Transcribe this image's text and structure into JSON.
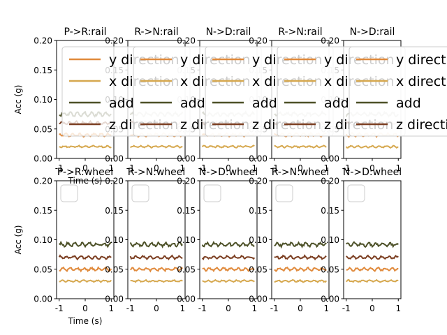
{
  "chart_data": [
    {
      "type": "line",
      "title": "P->R:rail",
      "xlabel": "Time (s)",
      "ylabel": "Acc (g)",
      "xlim": [
        -1.1,
        1.1
      ],
      "ylim": [
        0,
        0.2
      ],
      "xticks": [
        "-1",
        "0",
        "1"
      ],
      "yticks": [
        "0.00",
        "0.05",
        "0.10",
        "0.15",
        "0.20"
      ],
      "legend": "top-right",
      "series": [
        {
          "name": "y direction",
          "level": 0.04
        },
        {
          "name": "x direction",
          "level": 0.02
        },
        {
          "name": "add",
          "level": 0.075
        },
        {
          "name": "z direction",
          "level": 0.06
        }
      ]
    },
    {
      "type": "line",
      "title": "R->N:rail",
      "xlabel": "",
      "ylabel": "",
      "xlim": [
        -1.1,
        1.1
      ],
      "ylim": [
        0,
        0.2
      ],
      "xticks": [
        "-1",
        "0",
        "1"
      ],
      "yticks": [
        "0.00",
        "0.05",
        "0.10",
        "0.15",
        "0.20"
      ],
      "legend": "top-right",
      "series": [
        {
          "name": "y direction",
          "level": 0.04
        },
        {
          "name": "x direction",
          "level": 0.02
        },
        {
          "name": "add",
          "level": 0.075
        },
        {
          "name": "z direction",
          "level": 0.06
        }
      ]
    },
    {
      "type": "line",
      "title": "N->D:rail",
      "xlabel": "",
      "ylabel": "",
      "xlim": [
        -1.1,
        1.1
      ],
      "ylim": [
        0,
        0.2
      ],
      "xticks": [
        "-1",
        "0",
        "1"
      ],
      "yticks": [
        "0.00",
        "0.05",
        "0.10",
        "0.15",
        "0.20"
      ],
      "legend": "top-right",
      "series": [
        {
          "name": "y direction",
          "level": 0.04
        },
        {
          "name": "x direction",
          "level": 0.02
        },
        {
          "name": "add",
          "level": 0.075
        },
        {
          "name": "z direction",
          "level": 0.06
        }
      ]
    },
    {
      "type": "line",
      "title": "R->N:rail",
      "xlabel": "",
      "ylabel": "",
      "xlim": [
        -1.1,
        1.1
      ],
      "ylim": [
        0,
        0.2
      ],
      "xticks": [
        "-1",
        "0",
        "1"
      ],
      "yticks": [
        "0.00",
        "0.05",
        "0.10",
        "0.15",
        "0.20"
      ],
      "legend": "top-right",
      "series": [
        {
          "name": "y direction",
          "level": 0.04
        },
        {
          "name": "x direction",
          "level": 0.02
        },
        {
          "name": "add",
          "level": 0.075
        },
        {
          "name": "z direction",
          "level": 0.06
        }
      ]
    },
    {
      "type": "line",
      "title": "N->D:rail",
      "xlabel": "",
      "ylabel": "",
      "xlim": [
        -1.1,
        1.1
      ],
      "ylim": [
        0,
        0.2
      ],
      "xticks": [
        "-1",
        "0",
        "1"
      ],
      "yticks": [
        "0.00",
        "0.05",
        "0.10",
        "0.15",
        "0.20"
      ],
      "legend": "top-right",
      "series": [
        {
          "name": "y direction",
          "level": 0.04
        },
        {
          "name": "x direction",
          "level": 0.02
        },
        {
          "name": "add",
          "level": 0.075
        },
        {
          "name": "z direction",
          "level": 0.06
        }
      ]
    },
    {
      "type": "line",
      "title": "P->R:wheel",
      "xlabel": "Time (s)",
      "ylabel": "Acc (g)",
      "xlim": [
        -1.1,
        1.1
      ],
      "ylim": [
        0,
        0.2
      ],
      "xticks": [
        "-1",
        "0",
        "1"
      ],
      "yticks": [
        "0.00",
        "0.05",
        "0.10",
        "0.15",
        "0.20"
      ],
      "legend": "top-left",
      "series": [
        {
          "name": "",
          "level": 0.05
        },
        {
          "name": "",
          "level": 0.03
        },
        {
          "name": "",
          "level": 0.092
        },
        {
          "name": "",
          "level": 0.07
        }
      ]
    },
    {
      "type": "line",
      "title": "R->N:wheel",
      "xlabel": "",
      "ylabel": "",
      "xlim": [
        -1.1,
        1.1
      ],
      "ylim": [
        0,
        0.2
      ],
      "xticks": [
        "-1",
        "0",
        "1"
      ],
      "yticks": [
        "0.00",
        "0.05",
        "0.10",
        "0.15",
        "0.20"
      ],
      "legend": "top-left",
      "series": [
        {
          "name": "",
          "level": 0.05
        },
        {
          "name": "",
          "level": 0.03
        },
        {
          "name": "",
          "level": 0.092
        },
        {
          "name": "",
          "level": 0.07
        }
      ]
    },
    {
      "type": "line",
      "title": "N->D:wheel",
      "xlabel": "",
      "ylabel": "",
      "xlim": [
        -1.1,
        1.1
      ],
      "ylim": [
        0,
        0.2
      ],
      "xticks": [
        "-1",
        "0",
        "1"
      ],
      "yticks": [
        "0.00",
        "0.05",
        "0.10",
        "0.15",
        "0.20"
      ],
      "legend": "top-left",
      "series": [
        {
          "name": "",
          "level": 0.05
        },
        {
          "name": "",
          "level": 0.03
        },
        {
          "name": "",
          "level": 0.092
        },
        {
          "name": "",
          "level": 0.07
        }
      ]
    },
    {
      "type": "line",
      "title": "R->N:wheel",
      "xlabel": "",
      "ylabel": "",
      "xlim": [
        -1.1,
        1.1
      ],
      "ylim": [
        0,
        0.2
      ],
      "xticks": [
        "-1",
        "0",
        "1"
      ],
      "yticks": [
        "0.00",
        "0.05",
        "0.10",
        "0.15",
        "0.20"
      ],
      "legend": "top-left",
      "series": [
        {
          "name": "",
          "level": 0.05
        },
        {
          "name": "",
          "level": 0.03
        },
        {
          "name": "",
          "level": 0.092
        },
        {
          "name": "",
          "level": 0.07
        }
      ]
    },
    {
      "type": "line",
      "title": "N->D:wheel",
      "xlabel": "",
      "ylabel": "",
      "xlim": [
        -1.1,
        1.1
      ],
      "ylim": [
        0,
        0.2
      ],
      "xticks": [
        "-1",
        "0",
        "1"
      ],
      "yticks": [
        "0.00",
        "0.05",
        "0.10",
        "0.15",
        "0.20"
      ],
      "legend": "top-left",
      "series": [
        {
          "name": "",
          "level": 0.05
        },
        {
          "name": "",
          "level": 0.03
        },
        {
          "name": "",
          "level": 0.092
        },
        {
          "name": "",
          "level": 0.07
        }
      ]
    }
  ],
  "colors": {
    "y direction": "#e08a3c",
    "x direction": "#d6a84f",
    "add": "#4d5128",
    "z direction": "#7c3f22"
  }
}
